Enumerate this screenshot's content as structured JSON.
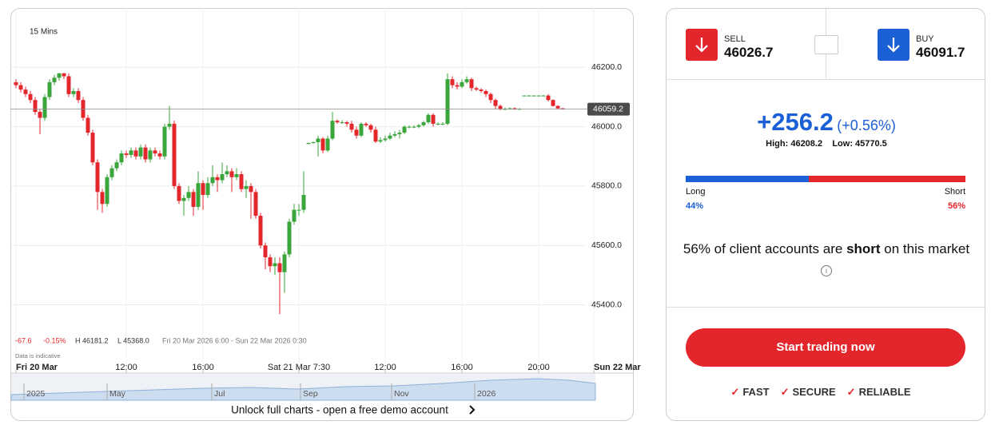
{
  "chart_data": {
    "type": "candlestick",
    "interval": "15 Mins",
    "stats": {
      "change": "-67.6",
      "change_pct": "-0.15%",
      "high": "H 46181.2",
      "low": "L 45368.0",
      "range": "Fri 20 Mar 2026 6:00 - Sun 22 Mar 2026 0:30"
    },
    "note": "Data is indicative",
    "xlim": [
      -1,
      129
    ],
    "xticks": [
      {
        "value": 0,
        "label": "Fri 20 Mar"
      },
      {
        "value": 23,
        "label": "12:00"
      },
      {
        "value": 39,
        "label": "16:00"
      },
      {
        "value": 59,
        "label": "Sat 21 Mar 7:30"
      },
      {
        "value": 77,
        "label": "12:00"
      },
      {
        "value": 93,
        "label": "16:00"
      },
      {
        "value": 109,
        "label": "20:00"
      },
      {
        "value": 120.5,
        "label": "Sun 22 Mar"
      }
    ],
    "ylim": [
      45170,
      46400
    ],
    "yticks": [
      {
        "value": 45400,
        "label": "45400.0"
      },
      {
        "value": 45600,
        "label": "45600.0"
      },
      {
        "value": 45800,
        "label": "45800.0"
      },
      {
        "value": 46000,
        "label": "46000.0"
      },
      {
        "value": 46200,
        "label": "46200.0"
      }
    ],
    "grid": true,
    "last_price": 46059.2,
    "up_color": "#3aa53a",
    "down_color": "#e3262c",
    "series": [
      {
        "open": [
          46150,
          46140,
          46125,
          46110,
          46090,
          46050,
          46030,
          46100,
          46150,
          46165,
          46180,
          46170,
          46110,
          46120,
          46090,
          46030,
          45980,
          45880,
          45780,
          45740,
          45830,
          45860,
          45880,
          45910,
          45905,
          45920,
          45900,
          45930,
          45890,
          45920,
          45910,
          45900,
          46000,
          46010,
          45800,
          45750,
          45760,
          45780,
          45730,
          45810,
          45770,
          45810,
          45830,
          45820,
          45840,
          45850,
          45830,
          45840,
          45790,
          45800,
          45780,
          45700,
          45600,
          45560,
          45530,
          45540,
          45510,
          45570,
          45680,
          45720,
          45720,
          45943,
          45945,
          45948,
          45960,
          45920,
          45960,
          46020,
          46015,
          46015,
          46010,
          45990,
          45970,
          46010,
          46005,
          45990,
          45950,
          45955,
          45960,
          45970,
          45975,
          45980,
          46000,
          46000,
          46000,
          46005,
          46015,
          46040,
          46010,
          46010,
          46010,
          46160,
          46140,
          46135,
          46150,
          46160,
          46130,
          46125,
          46120,
          46110,
          46090,
          46070,
          46060,
          46060,
          46062,
          46060,
          46104,
          46105,
          46105,
          46105,
          46105,
          46105,
          46090,
          46070,
          46062
        ],
        "high": [
          46160,
          46150,
          46135,
          46120,
          46100,
          46060,
          46110,
          46160,
          46175,
          46181,
          46181,
          46180,
          46130,
          46130,
          46100,
          46040,
          45990,
          45890,
          45790,
          45840,
          45870,
          45890,
          45920,
          45920,
          45930,
          45930,
          45940,
          45940,
          45930,
          45930,
          45920,
          46010,
          46070,
          46020,
          45810,
          45770,
          45800,
          45790,
          45850,
          45820,
          45830,
          45870,
          45840,
          45880,
          45870,
          45860,
          45860,
          45850,
          45820,
          45810,
          45790,
          45710,
          45610,
          45570,
          45560,
          45560,
          45580,
          45690,
          45740,
          45740,
          45850,
          45946,
          45950,
          45970,
          45965,
          45970,
          46050,
          46025,
          46022,
          46020,
          46020,
          46000,
          46015,
          46015,
          46010,
          46000,
          45965,
          45970,
          45980,
          45985,
          45990,
          46005,
          46005,
          46005,
          46010,
          46020,
          46045,
          46045,
          46015,
          46015,
          46180,
          46170,
          46150,
          46160,
          46170,
          46165,
          46135,
          46130,
          46125,
          46115,
          46095,
          46075,
          46065,
          46065,
          46065,
          46063,
          46106,
          46107,
          46106,
          46106,
          46107,
          46110,
          46092,
          46072,
          46063
        ],
        "low": [
          46130,
          46115,
          46100,
          46080,
          46040,
          45975,
          46020,
          46090,
          46140,
          46155,
          46160,
          46100,
          46100,
          46080,
          46020,
          45970,
          45870,
          45720,
          45710,
          45730,
          45820,
          45850,
          45870,
          45895,
          45895,
          45890,
          45890,
          45880,
          45880,
          45900,
          45890,
          45890,
          45990,
          45790,
          45740,
          45700,
          45750,
          45700,
          45720,
          45720,
          45760,
          45800,
          45780,
          45810,
          45830,
          45780,
          45820,
          45780,
          45760,
          45690,
          45690,
          45590,
          45520,
          45510,
          45500,
          45368,
          45440,
          45560,
          45670,
          45700,
          45710,
          45940,
          45943,
          45900,
          45910,
          45915,
          45955,
          46010,
          46010,
          46000,
          45980,
          45960,
          45965,
          46000,
          45980,
          45945,
          45945,
          45950,
          45955,
          45965,
          45960,
          45975,
          45995,
          45995,
          45995,
          46000,
          46010,
          46000,
          46005,
          46005,
          46005,
          46130,
          46125,
          46130,
          46145,
          46120,
          46120,
          46115,
          46100,
          46080,
          46060,
          46055,
          46055,
          46058,
          46057,
          46057,
          46103,
          46103,
          46104,
          46104,
          46103,
          46085,
          46068,
          46060,
          46058
        ],
        "close": [
          46140,
          46125,
          46110,
          46090,
          46050,
          46030,
          46100,
          46150,
          46165,
          46180,
          46170,
          46110,
          46120,
          46090,
          46030,
          45980,
          45880,
          45780,
          45740,
          45830,
          45860,
          45880,
          45910,
          45905,
          45920,
          45900,
          45930,
          45890,
          45920,
          45910,
          45900,
          46000,
          46010,
          45800,
          45750,
          45760,
          45780,
          45730,
          45810,
          45770,
          45810,
          45830,
          45820,
          45840,
          45850,
          45830,
          45840,
          45790,
          45800,
          45780,
          45700,
          45600,
          45560,
          45530,
          45540,
          45510,
          45570,
          45680,
          45720,
          45720,
          45770,
          45945,
          45948,
          45960,
          45920,
          45960,
          46020,
          46015,
          46015,
          46010,
          45990,
          45970,
          46010,
          46005,
          45990,
          45950,
          45955,
          45960,
          45970,
          45975,
          45980,
          46000,
          46000,
          46000,
          46005,
          46015,
          46040,
          46010,
          46010,
          46010,
          46160,
          46140,
          46135,
          46150,
          46160,
          46130,
          46125,
          46120,
          46110,
          46090,
          46070,
          46060,
          46060,
          46062,
          46060,
          46060,
          46105,
          46105,
          46105,
          46105,
          46105,
          46090,
          46070,
          46062,
          46060
        ]
      }
    ]
  },
  "navigator": {
    "labels": [
      "2025",
      "May",
      "Jul",
      "Sep",
      "Nov",
      "2026"
    ]
  },
  "footer_link": "Unlock full charts - open a free demo account",
  "trade_panel": {
    "sell": {
      "label": "SELL",
      "price": "46026.7"
    },
    "buy": {
      "label": "BUY",
      "price": "46091.7"
    },
    "change": "+256.2",
    "change_pct": "(+0.56%)",
    "high": "High: 46208.2",
    "low": "Low: 45770.5",
    "sentiment": {
      "long": {
        "name": "Long",
        "value": 44,
        "label": "44%"
      },
      "short": {
        "name": "Short",
        "value": 56,
        "label": "56%"
      }
    },
    "summary": {
      "lead": "56% of client accounts are",
      "emphasis": "short",
      "tail": "on this market"
    },
    "cta": "Start trading now",
    "features": [
      "FAST",
      "SECURE",
      "RELIABLE"
    ]
  }
}
